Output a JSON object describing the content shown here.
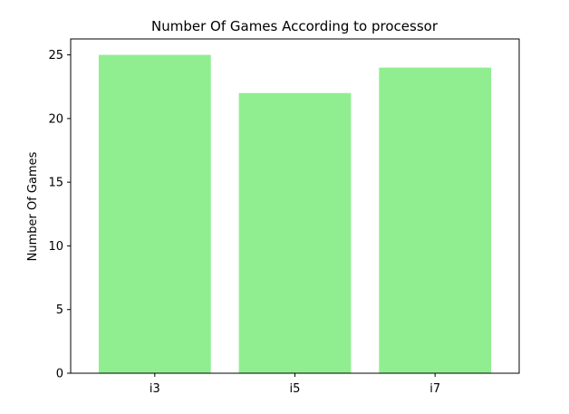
{
  "chart_data": {
    "type": "bar",
    "title": "Number Of Games According to processor",
    "xlabel": "",
    "ylabel": "Number Of Games",
    "categories": [
      "i3",
      "i5",
      "i7"
    ],
    "values": [
      25,
      22,
      24
    ],
    "ylim": [
      0,
      26.25
    ],
    "yticks": [
      0,
      5,
      10,
      15,
      20,
      25
    ],
    "bar_color": "#90ee90",
    "grid": false,
    "legend": "none"
  }
}
